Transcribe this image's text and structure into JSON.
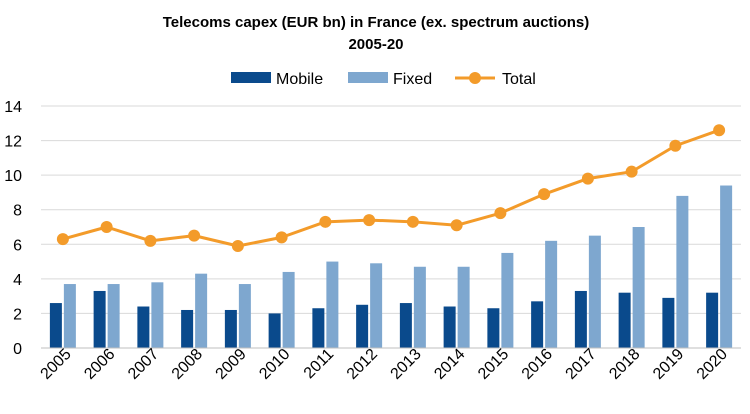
{
  "chart_data": {
    "type": "bar",
    "title": "Telecoms capex (EUR bn) in France (ex. spectrum auctions)",
    "subtitle": "2005-20",
    "categories": [
      "2005",
      "2006",
      "2007",
      "2008",
      "2009",
      "2010",
      "2011",
      "2012",
      "2013",
      "2014",
      "2015",
      "2016",
      "2017",
      "2018",
      "2019",
      "2020"
    ],
    "series": [
      {
        "name": "Mobile",
        "type": "bar",
        "color": "#0a4a8c",
        "values": [
          2.6,
          3.3,
          2.4,
          2.2,
          2.2,
          2.0,
          2.3,
          2.5,
          2.6,
          2.4,
          2.3,
          2.7,
          3.3,
          3.2,
          2.9,
          3.2
        ]
      },
      {
        "name": "Fixed",
        "type": "bar",
        "color": "#7ea7cf",
        "values": [
          3.7,
          3.7,
          3.8,
          4.3,
          3.7,
          4.4,
          5.0,
          4.9,
          4.7,
          4.7,
          5.5,
          6.2,
          6.5,
          7.0,
          8.8,
          9.4
        ]
      },
      {
        "name": "Total",
        "type": "line",
        "color": "#f39b2a",
        "values": [
          6.3,
          7.0,
          6.2,
          6.5,
          5.9,
          6.4,
          7.3,
          7.4,
          7.3,
          7.1,
          7.8,
          8.9,
          9.8,
          10.2,
          11.7,
          12.6
        ]
      }
    ],
    "yticks": [
      "0",
      "2",
      "4",
      "6",
      "8",
      "10",
      "12",
      "14"
    ],
    "ylim": [
      0,
      14
    ],
    "grid": true,
    "legend_position": "top-center"
  }
}
